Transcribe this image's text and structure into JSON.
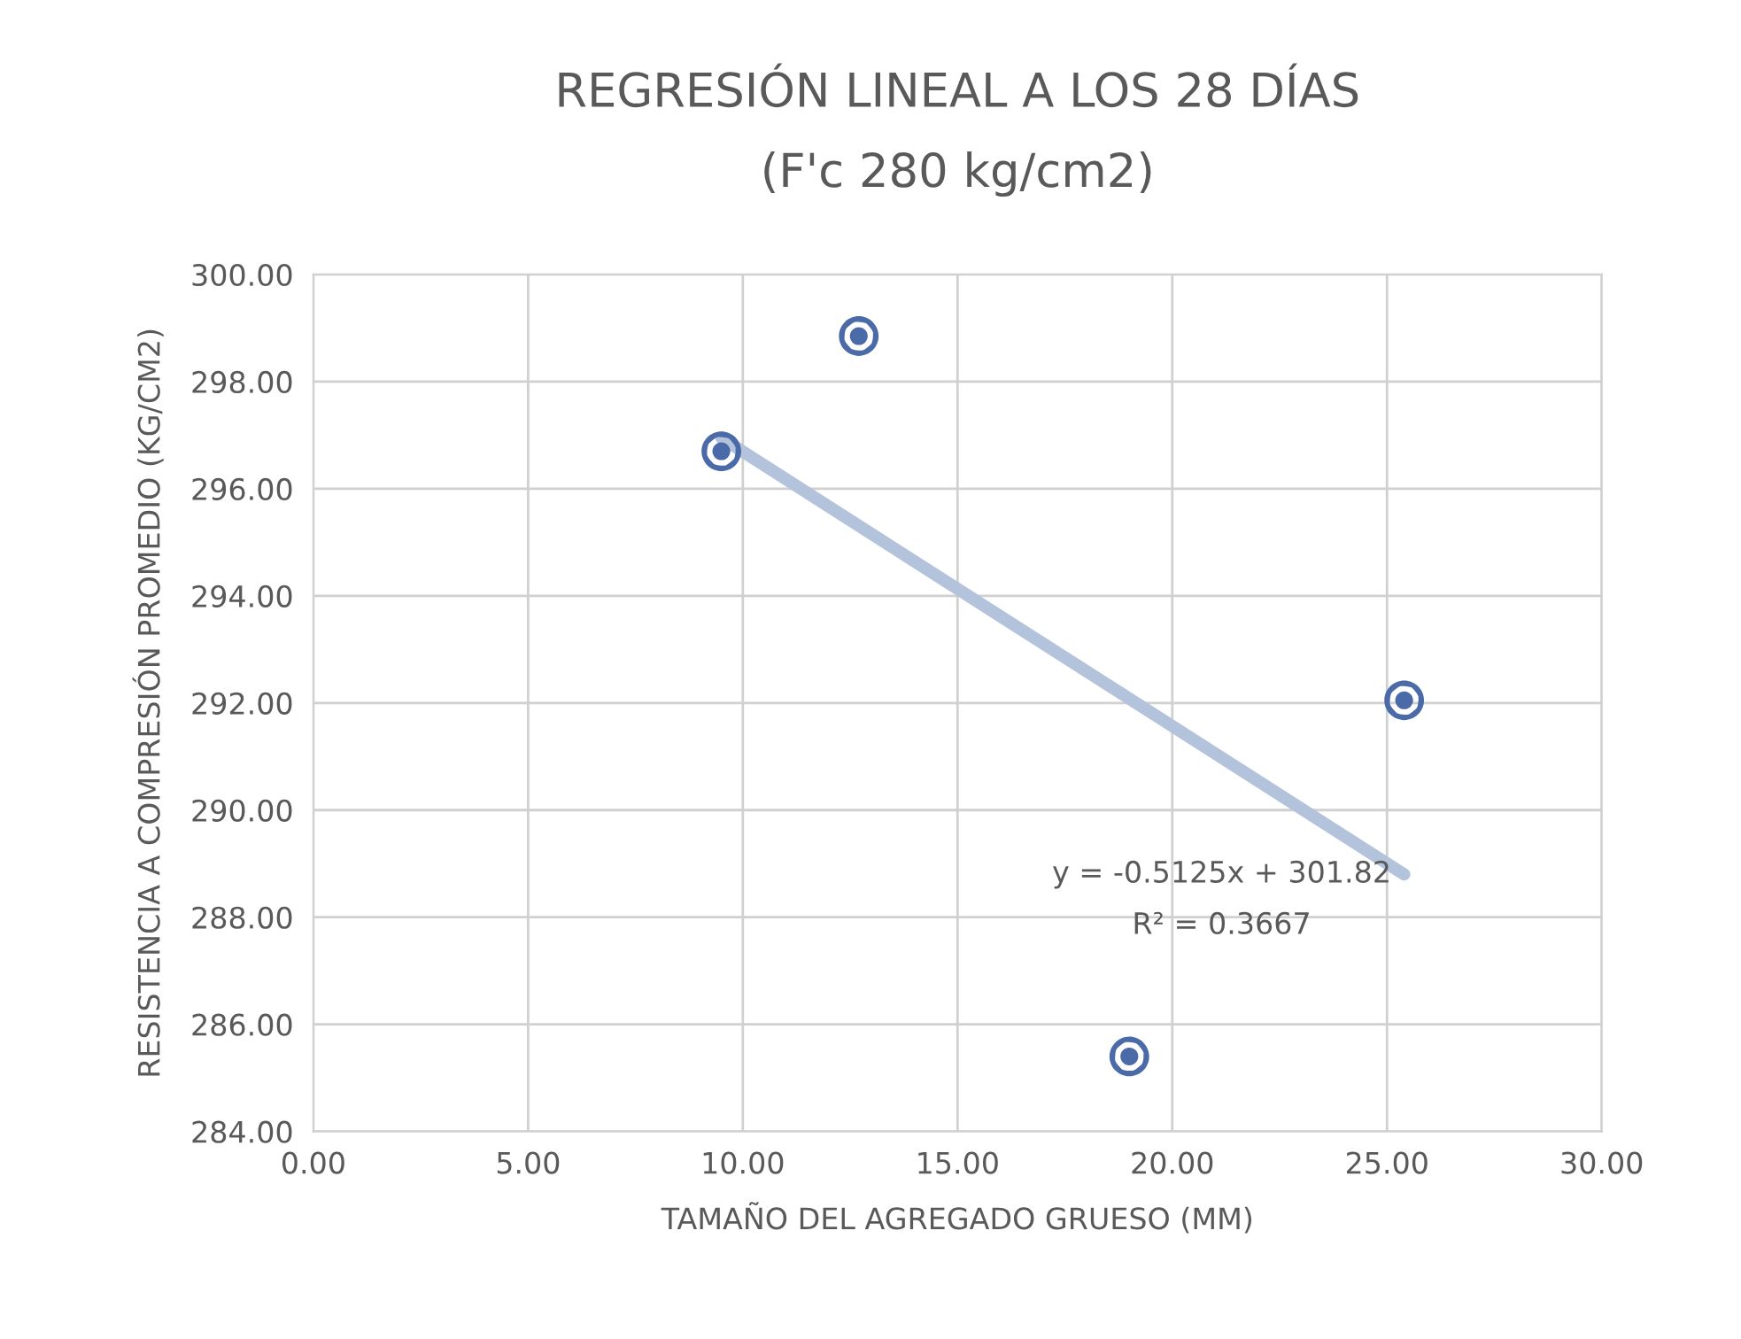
{
  "chart_data": {
    "type": "scatter",
    "title": "REGRESIÓN LINEAL A LOS 28 DÍAS",
    "subtitle": "(F'c 280 kg/cm2)",
    "xlabel": "TAMAÑO DEL AGREGADO GRUESO (MM)",
    "ylabel": "RESISTENCIA A COMPRESIÓN PROMEDIO (KG/CM2)",
    "series": [
      {
        "marker": "circle",
        "color": "#4a6aa8",
        "x": [
          9.5,
          12.7,
          19.0,
          25.4
        ],
        "values": [
          296.7,
          298.85,
          285.4,
          292.05
        ]
      },
      {
        "type": "line",
        "color": "#b4c3dc",
        "x": [
          9.5,
          25.4
        ],
        "values": [
          296.95,
          288.8
        ]
      }
    ],
    "annotations": [
      "y = -0.5125x + 301.82",
      "R² = 0.3667"
    ],
    "xlim": [
      0,
      30
    ],
    "xticks": [
      {
        "value": 0,
        "label": "0.00"
      },
      {
        "value": 5,
        "label": "5.00"
      },
      {
        "value": 10,
        "label": "10.00"
      },
      {
        "value": 15,
        "label": "15.00"
      },
      {
        "value": 20,
        "label": "20.00"
      },
      {
        "value": 25,
        "label": "25.00"
      },
      {
        "value": 30,
        "label": "30.00"
      }
    ],
    "ylim": [
      284,
      300
    ],
    "yticks": [
      {
        "value": 284,
        "label": "284.00"
      },
      {
        "value": 286,
        "label": "286.00"
      },
      {
        "value": 288,
        "label": "288.00"
      },
      {
        "value": 290,
        "label": "290.00"
      },
      {
        "value": 292,
        "label": "292.00"
      },
      {
        "value": 294,
        "label": "294.00"
      },
      {
        "value": 296,
        "label": "296.00"
      },
      {
        "value": 298,
        "label": "298.00"
      },
      {
        "value": 300,
        "label": "300.00"
      }
    ],
    "grid": true,
    "legend": false
  }
}
